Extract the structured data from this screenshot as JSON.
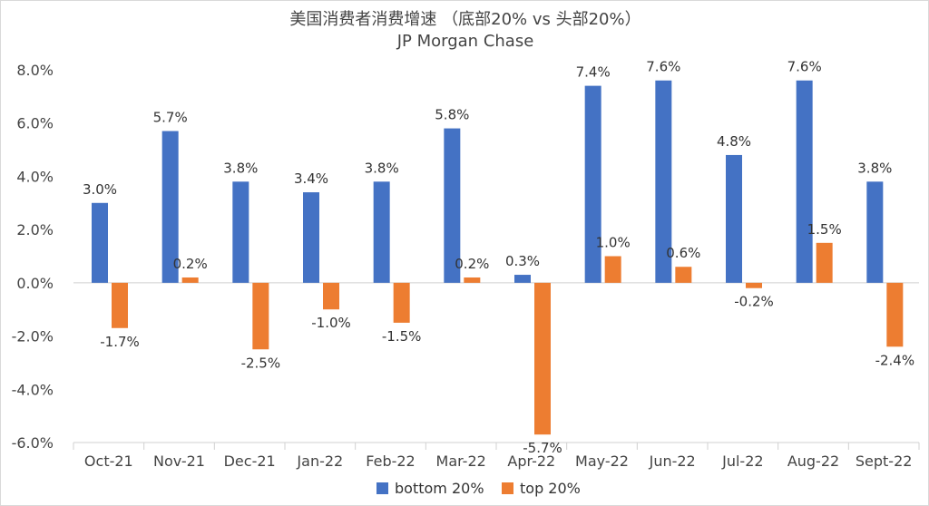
{
  "chart_data": {
    "type": "bar",
    "title": "美国消费者消费增速 （底部20% vs 头部20%）",
    "subtitle": "JP Morgan Chase",
    "categories": [
      "Oct-21",
      "Nov-21",
      "Dec-21",
      "Jan-22",
      "Feb-22",
      "Mar-22",
      "Apr-22",
      "May-22",
      "Jun-22",
      "Jul-22",
      "Aug-22",
      "Sept-22"
    ],
    "series": [
      {
        "name": "bottom 20%",
        "color": "#4472c4",
        "values": [
          3.0,
          5.7,
          3.8,
          3.4,
          3.8,
          5.8,
          0.3,
          7.4,
          7.6,
          4.8,
          7.6,
          3.8
        ],
        "labels": [
          "3.0%",
          "5.7%",
          "3.8%",
          "3.4%",
          "3.8%",
          "5.8%",
          "0.3%",
          "7.4%",
          "7.6%",
          "4.8%",
          "7.6%",
          "3.8%"
        ]
      },
      {
        "name": "top 20%",
        "color": "#ed7d31",
        "values": [
          -1.7,
          0.2,
          -2.5,
          -1.0,
          -1.5,
          0.2,
          -5.7,
          1.0,
          0.6,
          -0.2,
          1.5,
          -2.4
        ],
        "labels": [
          "-1.7%",
          "0.2%",
          "-2.5%",
          "-1.0%",
          "-1.5%",
          "0.2%",
          "-5.7%",
          "1.0%",
          "0.6%",
          "-0.2%",
          "1.5%",
          "-2.4%"
        ]
      }
    ],
    "yticks": [
      8,
      6,
      4,
      2,
      0,
      -2,
      -4,
      -6
    ],
    "ytick_labels": [
      "8.0%",
      "6.0%",
      "4.0%",
      "2.0%",
      "0.0%",
      "-2.0%",
      "-4.0%",
      "-6.0%"
    ],
    "ylim": [
      -6,
      8
    ],
    "legend_position": "bottom",
    "grid": false
  }
}
